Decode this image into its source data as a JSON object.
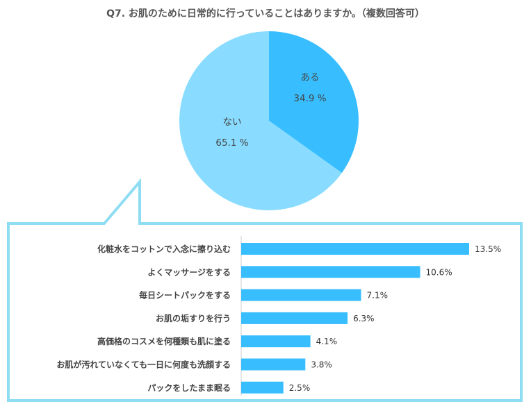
{
  "colors": {
    "yes": "#38BEFF",
    "no": "#89DCFF",
    "bar": "#38BEFF",
    "frame": "#8FDDF3",
    "axis": "#cccccc"
  },
  "chart_data": [
    {
      "type": "pie",
      "title": "Q7. お肌のために日常的に行っていることはありますか。（複数回答可）",
      "slices": [
        {
          "label": "ある",
          "value": 34.9,
          "value_text": "34.9 %"
        },
        {
          "label": "ない",
          "value": 65.1,
          "value_text": "65.1 %"
        }
      ]
    },
    {
      "type": "bar",
      "orientation": "horizontal",
      "categories": [
        "化粧水をコットンで入念に擦り込む",
        "よくマッサージをする",
        "毎日シートパックをする",
        "お肌の垢すりを行う",
        "高価格のコスメを何種類も肌に塗る",
        "お肌が汚れていなくても一日に何度も洗顔する",
        "パックをしたまま眠る"
      ],
      "values": [
        13.5,
        10.6,
        7.1,
        6.3,
        4.1,
        3.8,
        2.5
      ],
      "value_labels": [
        "13.5%",
        "10.6%",
        "7.1%",
        "6.3%",
        "4.1%",
        "3.8%",
        "2.5%"
      ],
      "xlim": [
        0,
        15
      ]
    }
  ]
}
